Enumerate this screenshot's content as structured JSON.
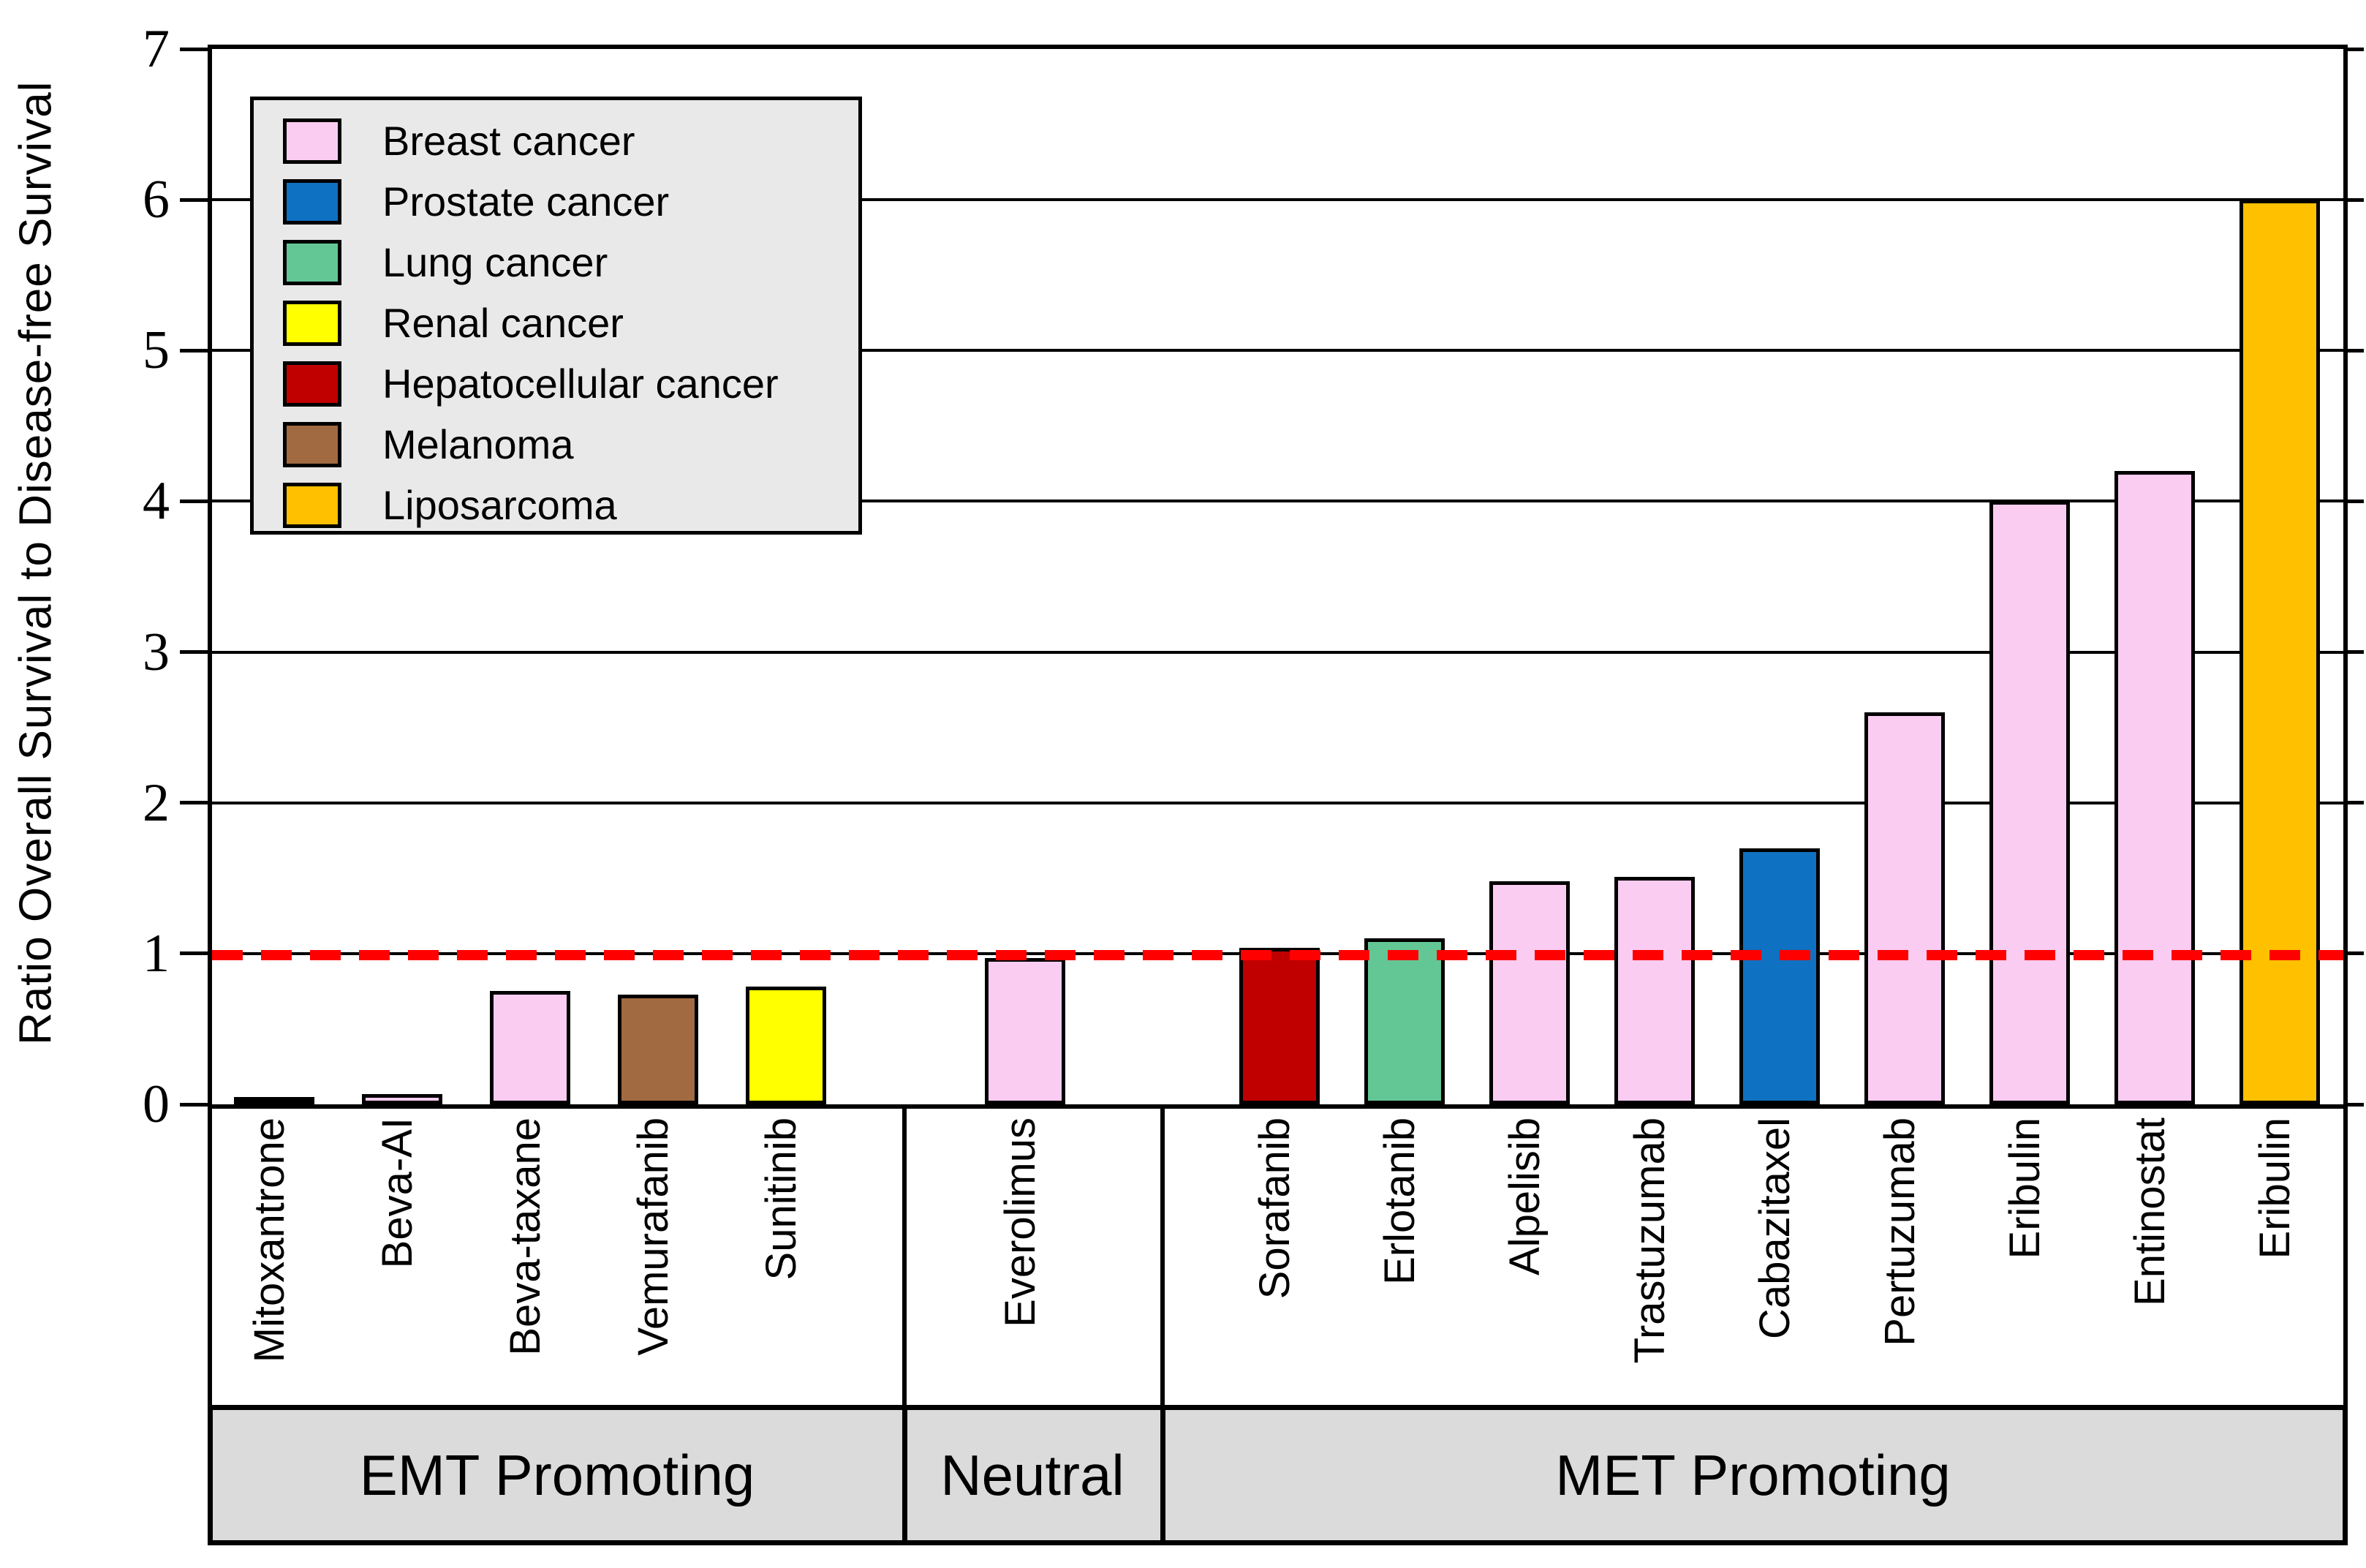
{
  "chart_data": {
    "type": "bar",
    "title": "",
    "ylabel": "Ratio Overall Survival to Disease-free Survival",
    "xlabel": "",
    "ylim": [
      0,
      7
    ],
    "yticks": [
      0,
      1,
      2,
      3,
      4,
      5,
      6,
      7
    ],
    "grid": "horizontal-black",
    "reference_line": {
      "y": 1,
      "color": "#FF0000",
      "style": "dashed"
    },
    "legend": {
      "position": "upper-left",
      "entries": [
        {
          "label": "Breast cancer",
          "color": "#FBCCF2"
        },
        {
          "label": "Prostate cancer",
          "color": "#0F71C1"
        },
        {
          "label": "Lung cancer",
          "color": "#63C795"
        },
        {
          "label": "Renal cancer",
          "color": "#FFFF00"
        },
        {
          "label": "Hepatocellular cancer",
          "color": "#C00000"
        },
        {
          "label": "Melanoma",
          "color": "#A16A41"
        },
        {
          "label": "Liposarcoma",
          "color": "#FFC000"
        }
      ]
    },
    "groups": [
      {
        "label": "EMT Promoting",
        "bar_count": 5
      },
      {
        "label": "Neutral",
        "bar_count": 1
      },
      {
        "label": "MET Promoting",
        "bar_count": 9
      }
    ],
    "bars": [
      {
        "drug": "Mitoxantrone",
        "cancer": "Prostate cancer",
        "value": 0.05,
        "group": "EMT Promoting"
      },
      {
        "drug": "Beva-AI",
        "cancer": "Breast cancer",
        "value": 0.07,
        "group": "EMT Promoting"
      },
      {
        "drug": "Beva-taxane",
        "cancer": "Breast cancer",
        "value": 0.75,
        "group": "EMT Promoting"
      },
      {
        "drug": "Vemurafanib",
        "cancer": "Melanoma",
        "value": 0.73,
        "group": "EMT Promoting"
      },
      {
        "drug": "Sunitinib",
        "cancer": "Renal cancer",
        "value": 0.78,
        "group": "EMT Promoting"
      },
      {
        "drug": "Everolimus",
        "cancer": "Breast cancer",
        "value": 0.97,
        "group": "Neutral"
      },
      {
        "drug": "Sorafanib",
        "cancer": "Hepatocellular cancer",
        "value": 1.04,
        "group": "MET Promoting"
      },
      {
        "drug": "Erlotanib",
        "cancer": "Lung cancer",
        "value": 1.1,
        "group": "MET Promoting"
      },
      {
        "drug": "Alpelisib",
        "cancer": "Breast cancer",
        "value": 1.48,
        "group": "MET Promoting"
      },
      {
        "drug": "Trastuzumab",
        "cancer": "Breast cancer",
        "value": 1.51,
        "group": "MET Promoting"
      },
      {
        "drug": "Cabazitaxel",
        "cancer": "Prostate cancer",
        "value": 1.7,
        "group": "MET Promoting"
      },
      {
        "drug": "Pertuzumab",
        "cancer": "Breast cancer",
        "value": 2.6,
        "group": "MET Promoting"
      },
      {
        "drug": "Eribulin",
        "cancer": "Breast cancer",
        "value": 4.0,
        "group": "MET Promoting"
      },
      {
        "drug": "Entinostat",
        "cancer": "Breast cancer",
        "value": 4.2,
        "group": "MET Promoting"
      },
      {
        "drug": "Eribulin",
        "cancer": "Liposarcoma",
        "value": 6.0,
        "group": "MET Promoting"
      }
    ]
  }
}
